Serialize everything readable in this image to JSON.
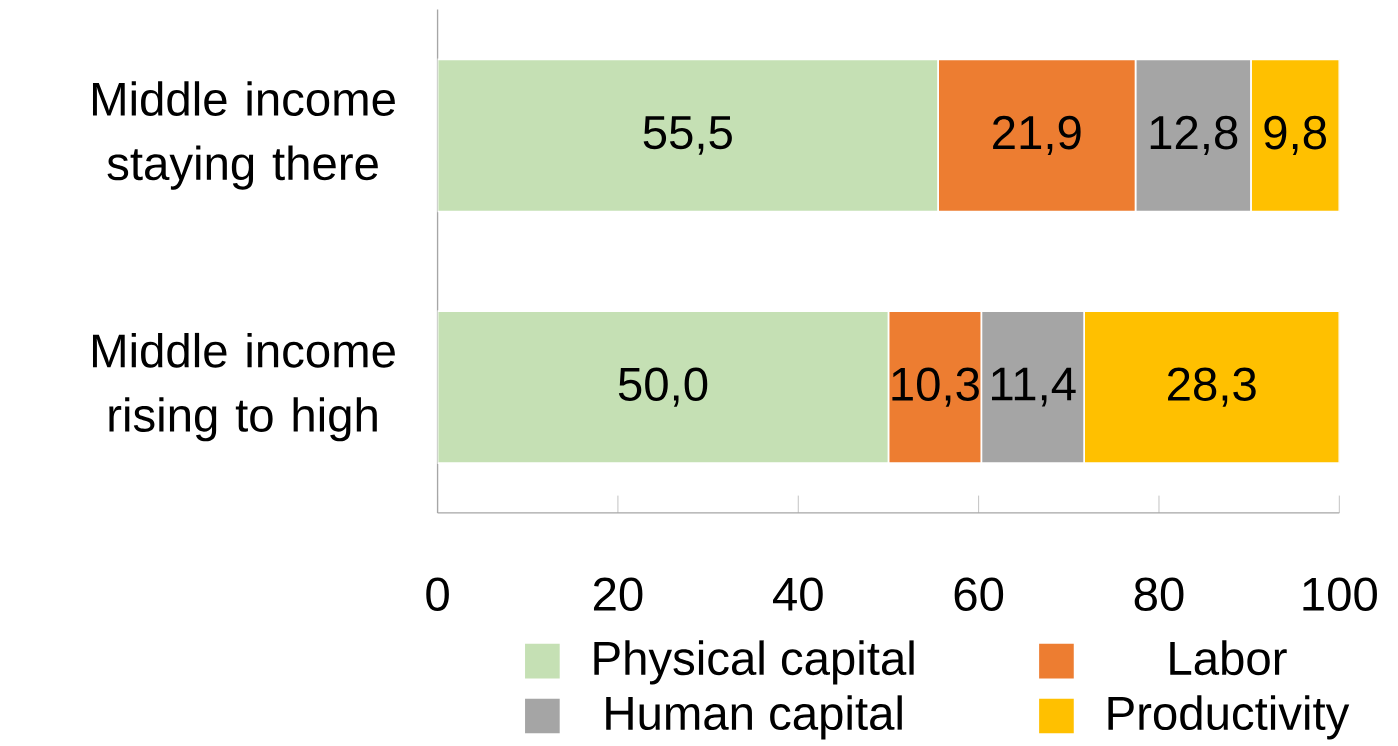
{
  "chart_data": {
    "type": "bar",
    "orientation": "horizontal",
    "stacked": true,
    "categories": [
      "Middle income staying there",
      "Middle income rising to high"
    ],
    "series": [
      {
        "name": "Physical capital",
        "color": "#c5e0b4",
        "values": [
          55.5,
          50.0
        ],
        "value_labels": [
          "55,5",
          "50,0"
        ]
      },
      {
        "name": "Labor",
        "color": "#ed7d31",
        "values": [
          21.9,
          10.3
        ],
        "value_labels": [
          "21,9",
          "10,3"
        ]
      },
      {
        "name": "Human capital",
        "color": "#a5a5a5",
        "values": [
          12.8,
          11.4
        ],
        "value_labels": [
          "12,8",
          "11,4"
        ]
      },
      {
        "name": "Productivity",
        "color": "#ffc000",
        "values": [
          9.8,
          28.3
        ],
        "value_labels": [
          "9,8",
          "28,3"
        ]
      }
    ],
    "xlim": [
      0,
      100
    ],
    "xticks": [
      0,
      20,
      40,
      60,
      80,
      100
    ],
    "legend": "bottom"
  }
}
